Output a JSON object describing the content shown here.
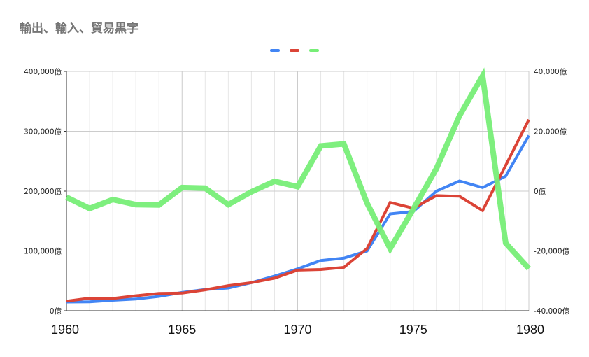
{
  "chart_data": {
    "type": "line",
    "title": "輸出、輸入、貿易黒字",
    "x": [
      1960,
      1961,
      1962,
      1963,
      1964,
      1965,
      1966,
      1967,
      1968,
      1969,
      1970,
      1971,
      1972,
      1973,
      1974,
      1975,
      1976,
      1977,
      1978,
      1979,
      1980
    ],
    "x_ticks": [
      "1960",
      "1965",
      "1970",
      "1975",
      "1980"
    ],
    "y_left_ticks": [
      "0億",
      "100,000億",
      "200,000億",
      "300,000億",
      "400,000億"
    ],
    "y_right_ticks": [
      "-40,000億",
      "-20,000億",
      "0億",
      "20,000億",
      "40,000億"
    ],
    "ylim_left": [
      0,
      400000
    ],
    "ylim_right": [
      -40000,
      40000
    ],
    "grid": true,
    "legend_position": "top",
    "series": [
      {
        "color": "#4285f4",
        "axis": "left",
        "values": [
          14600,
          15000,
          17500,
          19500,
          24000,
          30500,
          35500,
          38000,
          47000,
          58000,
          70000,
          84000,
          88000,
          100000,
          162000,
          166000,
          200000,
          217000,
          206000,
          225000,
          293000
        ]
      },
      {
        "color": "#db4437",
        "axis": "left",
        "values": [
          16000,
          21000,
          20500,
          25000,
          29000,
          29500,
          35000,
          42000,
          47000,
          54500,
          68000,
          69000,
          72500,
          104000,
          181000,
          171500,
          192500,
          191500,
          167500,
          243000,
          319500
        ]
      },
      {
        "color": "#77ee77",
        "axis": "right",
        "values": [
          -2000,
          -5800,
          -2800,
          -4500,
          -4600,
          1200,
          1000,
          -4500,
          -200,
          3300,
          1500,
          15100,
          15800,
          -4000,
          -19200,
          -6000,
          7500,
          25200,
          38500,
          -17400,
          -25900
        ]
      }
    ]
  }
}
